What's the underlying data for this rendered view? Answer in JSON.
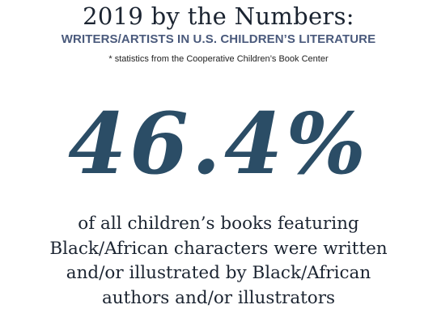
{
  "header": {
    "title": "2019 by the Numbers:",
    "subtitle": "WRITERS/ARTISTS IN U.S. CHILDREN’S LITERATURE",
    "source_note": "* statistics from the Cooperative Children’s Book Center"
  },
  "stat": {
    "value": "46.4%"
  },
  "description": {
    "lines": [
      "of all children’s books featuring",
      "Black/African characters were written",
      "and/or illustrated by Black/African",
      "authors and/or illustrators"
    ]
  },
  "colors": {
    "title": "#1b2431",
    "subtitle": "#4a5a7c",
    "stat": "#2b4d66",
    "background": "#ffffff"
  }
}
